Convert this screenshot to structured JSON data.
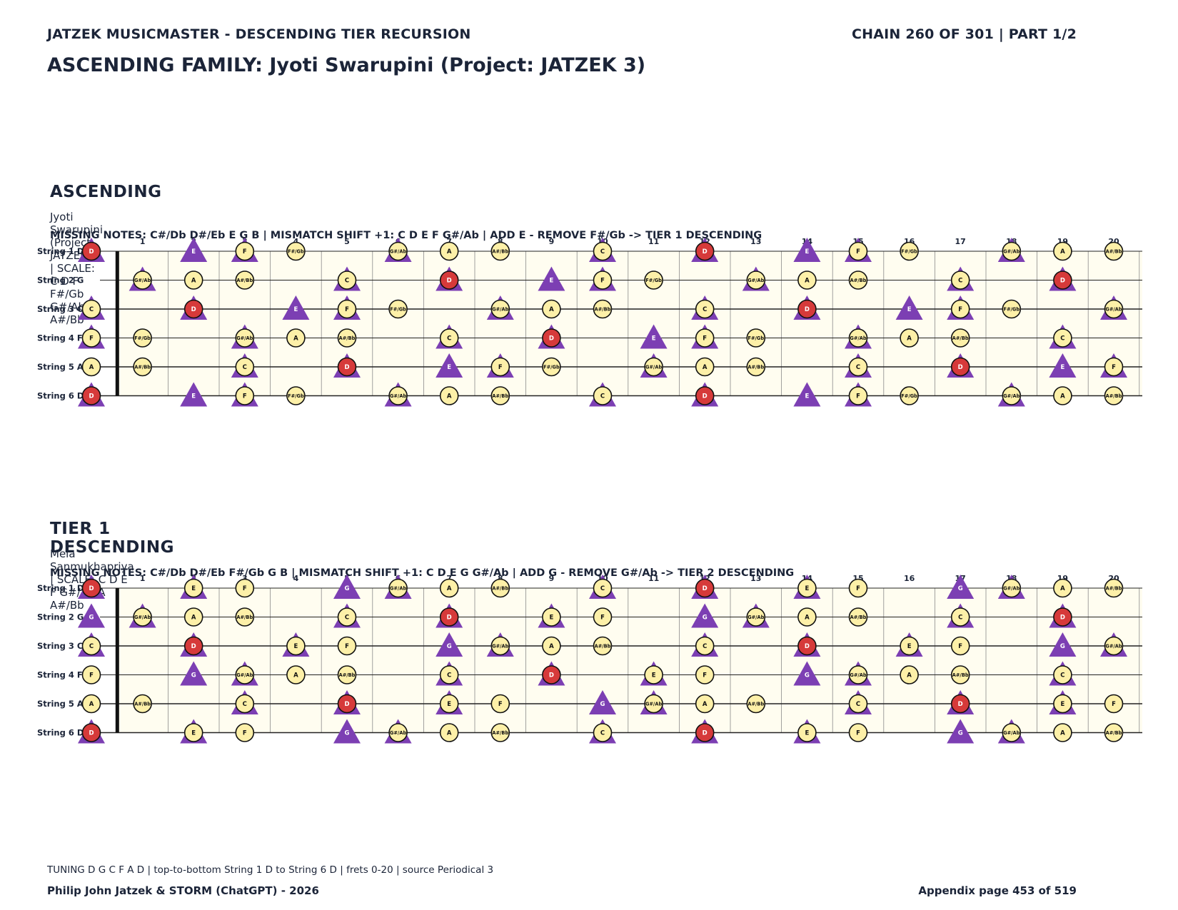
{
  "header": {
    "left": "JATZEK MUSICMASTER - DESCENDING TIER RECURSION",
    "right": "CHAIN 260 OF 301  |  PART 1/2",
    "title": "ASCENDING FAMILY: Jyoti Swarupini (Project: JATZEK 3)"
  },
  "sections": [
    {
      "heading": "ASCENDING",
      "subtitle": "Jyoti Swarupini (Project: JATZEK 3)  |  SCALE: C D F F#/Gb G#/Ab A A#/Bb",
      "missing": "MISSING NOTES: C#/Db D#/Eb E G B  |  MISMATCH SHIFT +1: C D E F G#/Ab  |  ADD E - REMOVE F#/Gb -> TIER 1 DESCENDING",
      "scale": [
        "C",
        "D",
        "F",
        "F#/Gb",
        "G#/Ab",
        "A",
        "A#/Bb"
      ],
      "shift": [
        "C",
        "D",
        "E",
        "F",
        "G#/Ab"
      ]
    },
    {
      "heading": "TIER 1 DESCENDING",
      "subtitle": "Mela Sanmukhapriya  |  SCALE: C D E F G#/Ab A A#/Bb",
      "missing": "MISSING NOTES: C#/Db D#/Eb F#/Gb G B  |  MISMATCH SHIFT +1: C D E G G#/Ab  |  ADD G - REMOVE G#/Ab -> TIER 2 DESCENDING",
      "scale": [
        "C",
        "D",
        "E",
        "F",
        "G#/Ab",
        "A",
        "A#/Bb"
      ],
      "shift": [
        "C",
        "D",
        "E",
        "G",
        "G#/Ab"
      ]
    }
  ],
  "fretboard": {
    "string_labels": [
      "String 1 D",
      "String 2 G",
      "String 3 C",
      "String 4 F",
      "String 5 A",
      "String 6 D"
    ],
    "open_notes": [
      "D",
      "G",
      "C",
      "F",
      "A",
      "D"
    ],
    "fret_numbers": [
      "1",
      "2",
      "3",
      "4",
      "5",
      "6",
      "7",
      "8",
      "9",
      "10",
      "11",
      "12",
      "13",
      "14",
      "15",
      "16",
      "17",
      "18",
      "19",
      "20"
    ],
    "root": "D",
    "colors": {
      "board": "#fffdf0",
      "note_fill": "#fdf0a8",
      "root_fill": "#d63a3a",
      "triangle": "#7c3fb3",
      "ink": "#1b2438"
    }
  },
  "footer": {
    "tuning": "TUNING D G C F A D | top-to-bottom String 1 D to String 6 D | frets 0-20 | source Periodical 3",
    "credit": "Philip John Jatzek & STORM (ChatGPT) - 2026",
    "page": "Appendix page 453 of 519"
  }
}
